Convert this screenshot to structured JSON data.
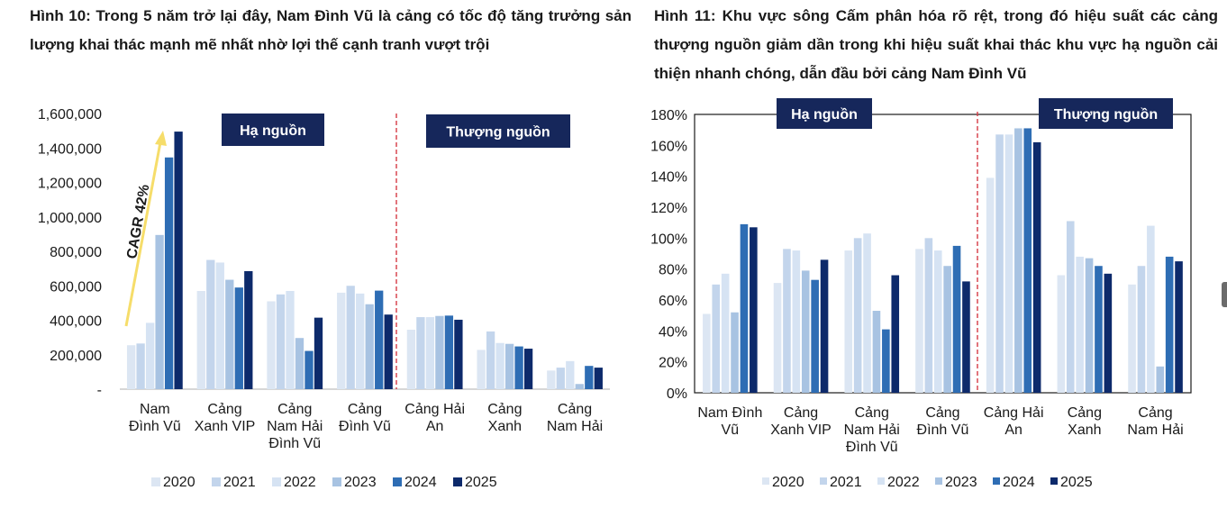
{
  "figure1": {
    "title": "Hình 10: Trong 5 năm trở lại đây, Nam Đình Vũ là cảng có tốc độ tăng trưởng sản lượng khai thác mạnh mẽ nhất nhờ lợi thế cạnh tranh vượt trội",
    "annotation": "CAGR 42%",
    "group_labels": [
      "Hạ nguồn",
      "Thượng nguồn"
    ]
  },
  "figure2": {
    "title": "Hình 11: Khu vực sông Cấm phân hóa rõ rệt, trong đó hiệu suất các cảng thượng nguồn giảm dần trong khi hiệu suất khai thác khu vực hạ nguồn cải thiện nhanh chóng, dẫn đầu bởi cảng Nam Đình Vũ",
    "group_labels": [
      "Hạ nguồn",
      "Thượng nguồn"
    ]
  },
  "colors": [
    "#dce6f3",
    "#c3d5ec",
    "#d6e3f3",
    "#a8c3e2",
    "#2e6db4",
    "#0d2a6b"
  ],
  "chart_data": [
    {
      "type": "bar",
      "title": "",
      "xlabel": "",
      "ylabel": "",
      "ylim": [
        0,
        1600000
      ],
      "yticks": [
        "-",
        "200,000",
        "400,000",
        "600,000",
        "800,000",
        "1,000,000",
        "1,200,000",
        "1,400,000",
        "1,600,000"
      ],
      "legend_position": "bottom",
      "categories": [
        [
          "Nam",
          "Đình Vũ"
        ],
        [
          "Cảng",
          "Xanh VIP"
        ],
        [
          "Cảng",
          "Nam Hải",
          "Đình Vũ"
        ],
        [
          "Cảng",
          "Đình Vũ"
        ],
        [
          "Cảng Hải",
          "An"
        ],
        [
          "Cảng",
          "Xanh"
        ],
        [
          "Cảng",
          "Nam Hải"
        ]
      ],
      "series": [
        {
          "name": "2020",
          "values": [
            255000,
            570000,
            510000,
            560000,
            345000,
            228000,
            108000
          ]
        },
        {
          "name": "2021",
          "values": [
            265000,
            750000,
            550000,
            600000,
            418000,
            335000,
            125000
          ]
        },
        {
          "name": "2022",
          "values": [
            385000,
            735000,
            570000,
            555000,
            418000,
            268000,
            163000
          ]
        },
        {
          "name": "2023",
          "values": [
            895000,
            635000,
            297000,
            493000,
            425000,
            263000,
            30000
          ]
        },
        {
          "name": "2024",
          "values": [
            1345000,
            590000,
            222000,
            572000,
            427000,
            248000,
            135000
          ]
        },
        {
          "name": "2025",
          "values": [
            1495000,
            685000,
            415000,
            433000,
            403000,
            235000,
            125000
          ]
        }
      ]
    },
    {
      "type": "bar",
      "title": "",
      "xlabel": "",
      "ylabel": "",
      "ylim": [
        0,
        180
      ],
      "yticks": [
        "0%",
        "20%",
        "40%",
        "60%",
        "80%",
        "100%",
        "120%",
        "140%",
        "160%",
        "180%"
      ],
      "legend_position": "bottom",
      "categories": [
        [
          "Nam Đình",
          "Vũ"
        ],
        [
          "Cảng",
          "Xanh VIP"
        ],
        [
          "Cảng",
          "Nam Hải",
          "Đình Vũ"
        ],
        [
          "Cảng",
          "Đình Vũ"
        ],
        [
          "Cảng Hải",
          "An"
        ],
        [
          "Cảng",
          "Xanh"
        ],
        [
          "Cảng",
          "Nam Hải"
        ]
      ],
      "series": [
        {
          "name": "2020",
          "values": [
            51,
            71,
            92,
            93,
            139,
            76,
            70
          ]
        },
        {
          "name": "2021",
          "values": [
            70,
            93,
            100,
            100,
            167,
            111,
            82
          ]
        },
        {
          "name": "2022",
          "values": [
            77,
            92,
            103,
            92,
            167,
            88,
            108
          ]
        },
        {
          "name": "2023",
          "values": [
            52,
            79,
            53,
            82,
            171,
            87,
            17
          ]
        },
        {
          "name": "2024",
          "values": [
            109,
            73,
            41,
            95,
            171,
            82,
            88
          ]
        },
        {
          "name": "2025",
          "values": [
            107,
            86,
            76,
            72,
            162,
            77,
            85
          ]
        }
      ]
    }
  ]
}
